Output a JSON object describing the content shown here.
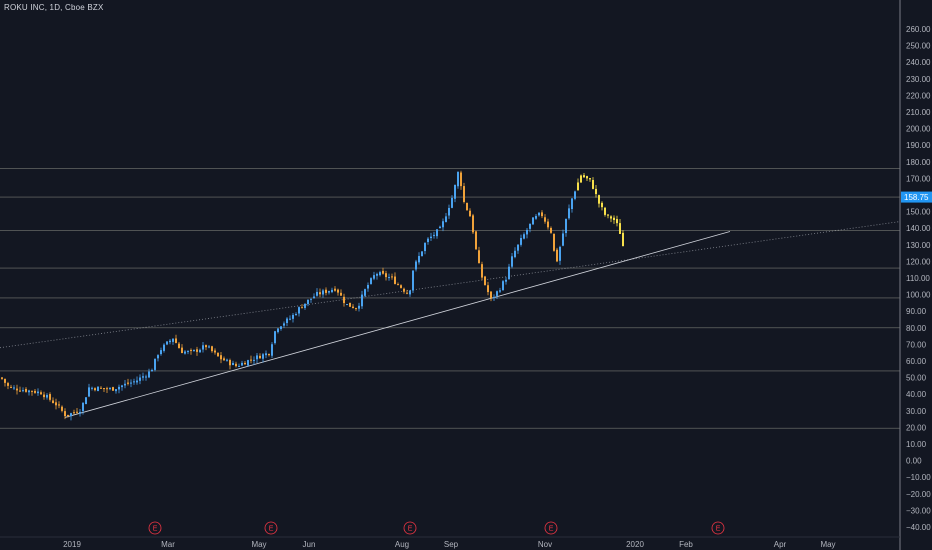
{
  "header": {
    "ticker_label": "ROKU INC, 1D, Cboe BZX"
  },
  "colors": {
    "background": "#131722",
    "axis_line": "#787b86",
    "up": "#4aa3f0",
    "down": "#f0a23a",
    "last": "#f7e04b",
    "hline": "#c8c8b4",
    "trendline": "#d1d4dc",
    "price_tag": "#2196f3",
    "earnings": "#f23645"
  },
  "chart_data": {
    "type": "candlestick",
    "title": "ROKU INC, 1D, Cboe BZX",
    "ylim": [
      -40,
      260
    ],
    "y_ticks": [
      "260.00",
      "250.00",
      "240.00",
      "230.00",
      "220.00",
      "210.00",
      "200.00",
      "190.00",
      "180.00",
      "170.00",
      "160.00",
      "150.00",
      "140.00",
      "130.00",
      "120.00",
      "110.00",
      "100.00",
      "90.00",
      "80.00",
      "70.00",
      "60.00",
      "50.00",
      "40.00",
      "30.00",
      "20.00",
      "10.00",
      "0.00",
      "−10.00",
      "−20.00",
      "−30.00",
      "−40.00"
    ],
    "x_ticks": [
      "2019",
      "Mar",
      "May",
      "Jun",
      "Aug",
      "Sep",
      "Nov",
      "2020",
      "Feb",
      "Apr",
      "May"
    ],
    "last_price": 158.75,
    "horizontal_levels": [
      176,
      158.75,
      138.5,
      116,
      98,
      80,
      54,
      19.5
    ],
    "earnings_markers": [
      {
        "label": "E",
        "date": "Feb 2019"
      },
      {
        "label": "E",
        "date": "May 2019"
      },
      {
        "label": "E",
        "date": "Aug 2019"
      },
      {
        "label": "E",
        "date": "Nov 2019"
      },
      {
        "label": "E",
        "date": "Feb 2020"
      }
    ],
    "trendlines": [
      {
        "from": {
          "date": "Dec 2018",
          "price": 68
        },
        "to": {
          "date": "May 2020",
          "price": 144
        },
        "style": "dotted"
      },
      {
        "from": {
          "date": "Jan 2019",
          "price": 26
        },
        "to": {
          "date": "Mar 2020",
          "price": 138
        },
        "style": "solid"
      }
    ],
    "price_path_knots": [
      [
        0,
        50
      ],
      [
        8,
        44
      ],
      [
        40,
        41
      ],
      [
        55,
        34
      ],
      [
        65,
        27
      ],
      [
        80,
        31
      ],
      [
        88,
        44
      ],
      [
        110,
        43
      ],
      [
        135,
        48
      ],
      [
        150,
        54
      ],
      [
        158,
        66
      ],
      [
        172,
        74
      ],
      [
        180,
        66
      ],
      [
        190,
        65
      ],
      [
        205,
        69
      ],
      [
        218,
        62
      ],
      [
        235,
        57
      ],
      [
        250,
        61
      ],
      [
        268,
        65
      ],
      [
        275,
        80
      ],
      [
        290,
        86
      ],
      [
        300,
        93
      ],
      [
        315,
        100
      ],
      [
        335,
        104
      ],
      [
        345,
        94
      ],
      [
        356,
        92
      ],
      [
        365,
        104
      ],
      [
        375,
        113
      ],
      [
        390,
        110
      ],
      [
        408,
        100
      ],
      [
        412,
        115
      ],
      [
        425,
        132
      ],
      [
        440,
        140
      ],
      [
        452,
        160
      ],
      [
        458,
        176
      ],
      [
        462,
        157
      ],
      [
        470,
        146
      ],
      [
        476,
        123
      ],
      [
        480,
        112
      ],
      [
        490,
        97
      ],
      [
        498,
        103
      ],
      [
        505,
        110
      ],
      [
        512,
        124
      ],
      [
        522,
        135
      ],
      [
        532,
        145
      ],
      [
        540,
        149
      ],
      [
        550,
        138
      ],
      [
        555,
        118
      ],
      [
        565,
        145
      ],
      [
        572,
        160
      ],
      [
        580,
        172
      ],
      [
        590,
        168
      ],
      [
        598,
        155
      ],
      [
        605,
        147
      ],
      [
        612,
        146
      ],
      [
        618,
        140
      ],
      [
        624,
        124
      ]
    ]
  }
}
